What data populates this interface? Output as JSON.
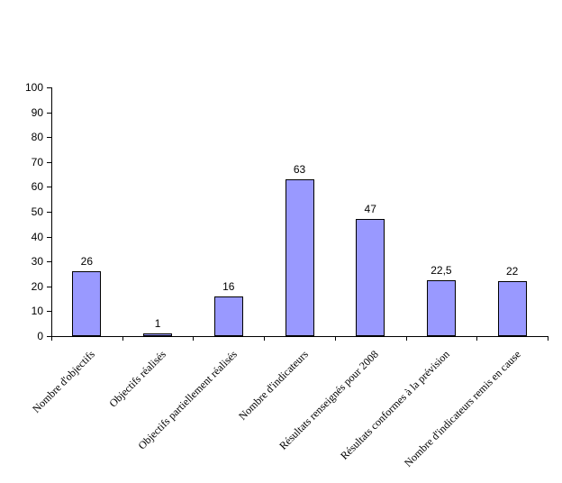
{
  "chart_data": {
    "type": "bar",
    "title": "",
    "categories": [
      "Nombre d'objectifs",
      "Objectifs réalisés",
      "Objectifs partiellement réalisés",
      "Nombre d'indicateurs",
      "Résultats renseignés pour 2008",
      "Résultats conformes à la prévision",
      "Nombre d'indicateurs remis en cause"
    ],
    "values": [
      26,
      1,
      16,
      63,
      47,
      22.5,
      22
    ],
    "value_labels": [
      "26",
      "1",
      "16",
      "63",
      "47",
      "22,5",
      "22"
    ],
    "xlabel": "",
    "ylabel": "",
    "ylim": [
      0,
      100
    ],
    "ytick_step": 10,
    "ytick_labels": [
      "0",
      "10",
      "20",
      "30",
      "40",
      "50",
      "60",
      "70",
      "80",
      "90",
      "100"
    ],
    "grid": false,
    "legend": false,
    "bar_color": "#9999FF",
    "bar_border_color": "#000000",
    "axis_color": "#000000",
    "text_color": "#000000",
    "background": "#FFFFFF"
  }
}
